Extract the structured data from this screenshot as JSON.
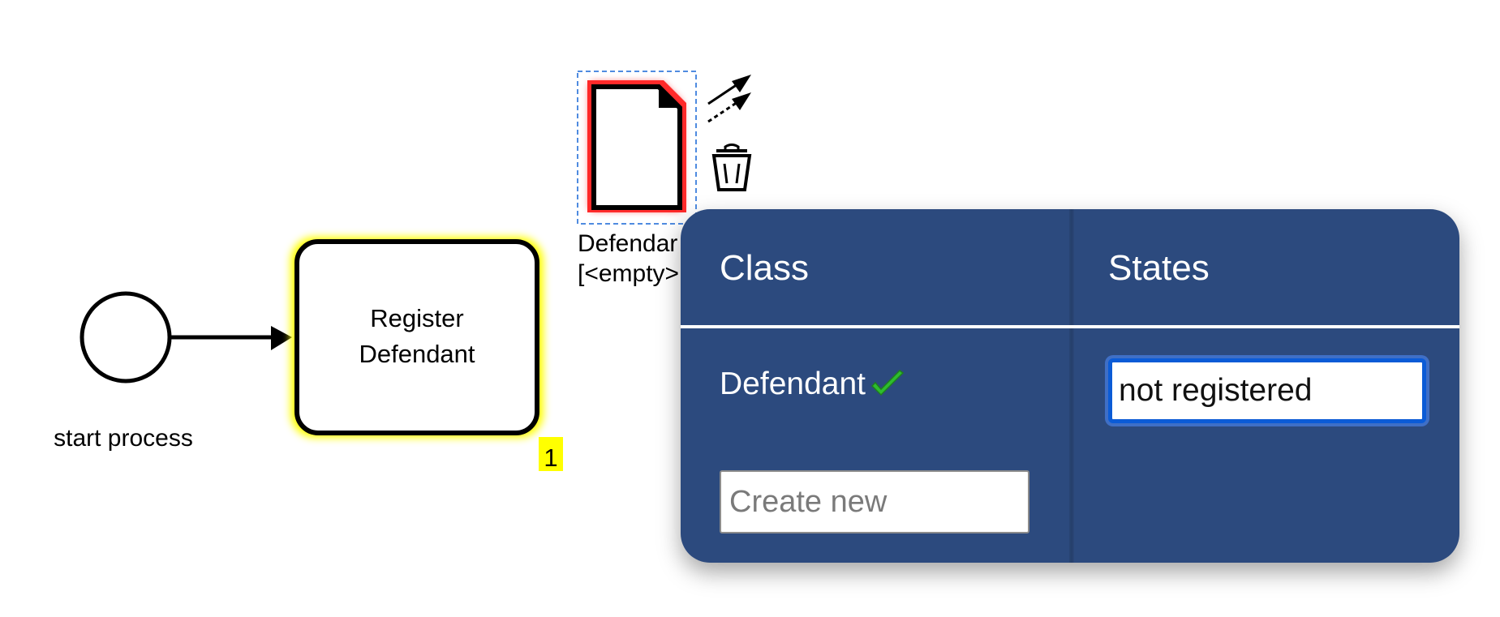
{
  "diagram": {
    "start_event": {
      "label": "start process"
    },
    "task": {
      "label_line1": "Register",
      "label_line2": "Defendant",
      "badge": "1"
    },
    "data_object": {
      "label_line1": "Defendar",
      "label_line2": "[<empty>"
    },
    "context_pad": {
      "icons": [
        "connect-arrow-icon",
        "data-association-icon",
        "trash-icon"
      ]
    }
  },
  "panel": {
    "class_header": "Class",
    "states_header": "States",
    "classes": [
      {
        "name": "Defendant",
        "selected": true
      }
    ],
    "create_new_placeholder": "Create new",
    "state_value": "not registered"
  },
  "colors": {
    "panel_bg": "#2c4a7e",
    "task_highlight": "#ffff00",
    "data_object_highlight": "#ff0000",
    "selection_outline": "#4f8be0",
    "check_green": "#2ebd2e",
    "input_focus": "#0b5bd6"
  }
}
